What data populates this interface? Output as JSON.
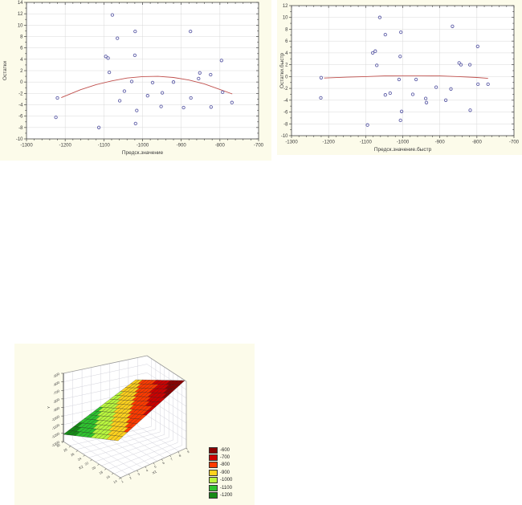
{
  "page": {
    "background": "#ffffff",
    "panel_background": "#fcfbea"
  },
  "chart_data": [
    {
      "id": "residuals-vs-predicted",
      "type": "scatter",
      "xlabel": "Предск.значение",
      "ylabel": "Остатки",
      "xlim": [
        -1300,
        -700
      ],
      "ylim": [
        -10,
        14
      ],
      "x_ticks": [
        -1300,
        -1200,
        -1100,
        -1000,
        -900,
        -800,
        -700
      ],
      "y_ticks": [
        14,
        12,
        10,
        8,
        6,
        4,
        2,
        0,
        -2,
        -4,
        -6,
        -8,
        -10
      ],
      "x_minor_step": 20,
      "y_minor_step": 1,
      "grid": true,
      "marker_color": "#5f5fa8",
      "line_color": "#c0504d",
      "points": [
        [
          -1220,
          -2.8
        ],
        [
          -1224,
          -6.2
        ],
        [
          -1113,
          -8.0
        ],
        [
          -1095,
          4.5
        ],
        [
          -1089,
          4.2
        ],
        [
          -1086,
          1.7
        ],
        [
          -1078,
          11.8
        ],
        [
          -1065,
          7.7
        ],
        [
          -1059,
          -3.3
        ],
        [
          -1047,
          -1.6
        ],
        [
          -1028,
          0.1
        ],
        [
          -1019,
          8.9
        ],
        [
          -1020,
          4.7
        ],
        [
          -1015,
          -5.0
        ],
        [
          -1018,
          -7.3
        ],
        [
          -987,
          -2.4
        ],
        [
          -974,
          -0.1
        ],
        [
          -952,
          -4.3
        ],
        [
          -949,
          -1.9
        ],
        [
          -920,
          0.0
        ],
        [
          -894,
          -4.5
        ],
        [
          -876,
          8.9
        ],
        [
          -875,
          -2.8
        ],
        [
          -852,
          1.6
        ],
        [
          -855,
          0.6
        ],
        [
          -824,
          1.3
        ],
        [
          -823,
          -4.4
        ],
        [
          -796,
          3.8
        ],
        [
          -793,
          -1.8
        ],
        [
          -769,
          -3.6
        ]
      ],
      "fit_curve": [
        [
          -1210,
          -2.75
        ],
        [
          -1160,
          -1.35
        ],
        [
          -1120,
          -0.45
        ],
        [
          -1080,
          0.2
        ],
        [
          -1040,
          0.7
        ],
        [
          -1000,
          0.95
        ],
        [
          -960,
          1.0
        ],
        [
          -920,
          0.8
        ],
        [
          -880,
          0.35
        ],
        [
          -840,
          -0.35
        ],
        [
          -800,
          -1.3
        ],
        [
          -768,
          -2.1
        ]
      ]
    },
    {
      "id": "residuals-vs-predicted-fast",
      "type": "scatter",
      "xlabel": "Предск.значение.быстр",
      "ylabel": "Остатки.быстр",
      "xlim": [
        -1300,
        -700
      ],
      "ylim": [
        -10,
        12
      ],
      "x_ticks": [
        -1300,
        -1200,
        -1100,
        -1000,
        -900,
        -800,
        -700
      ],
      "y_ticks": [
        12,
        10,
        8,
        6,
        4,
        2,
        0,
        -2,
        -4,
        -6,
        -8,
        -10
      ],
      "x_minor_step": 20,
      "y_minor_step": 1,
      "grid": true,
      "marker_color": "#5f5fa8",
      "line_color": "#c0504d",
      "points": [
        [
          -1220,
          -0.2
        ],
        [
          -1221,
          -3.6
        ],
        [
          -1095,
          -8.2
        ],
        [
          -1081,
          4.0
        ],
        [
          -1074,
          4.3
        ],
        [
          -1070,
          1.9
        ],
        [
          -1062,
          10.0
        ],
        [
          -1047,
          7.1
        ],
        [
          -1047,
          -3.1
        ],
        [
          -1034,
          -2.8
        ],
        [
          -1007,
          3.4
        ],
        [
          -1005,
          7.5
        ],
        [
          -1010,
          -0.5
        ],
        [
          -1003,
          -5.9
        ],
        [
          -1006,
          -7.4
        ],
        [
          -973,
          -3.0
        ],
        [
          -964,
          -0.5
        ],
        [
          -938,
          -3.7
        ],
        [
          -936,
          -4.4
        ],
        [
          -910,
          -1.8
        ],
        [
          -884,
          -4.0
        ],
        [
          -866,
          8.5
        ],
        [
          -870,
          -2.1
        ],
        [
          -848,
          2.3
        ],
        [
          -843,
          2.0
        ],
        [
          -819,
          2.0
        ],
        [
          -818,
          -5.7
        ],
        [
          -798,
          5.1
        ],
        [
          -797,
          -1.3
        ],
        [
          -770,
          -1.3
        ]
      ],
      "fit_curve": [
        [
          -1212,
          -0.25
        ],
        [
          -1150,
          -0.1
        ],
        [
          -1100,
          0.0
        ],
        [
          -1050,
          0.1
        ],
        [
          -1000,
          0.15
        ],
        [
          -950,
          0.15
        ],
        [
          -900,
          0.1
        ],
        [
          -850,
          0.0
        ],
        [
          -800,
          -0.15
        ],
        [
          -770,
          -0.3
        ]
      ]
    },
    {
      "id": "regression-surface-3d",
      "type": "surface3d",
      "z_label": "Y",
      "x1_label": "X1",
      "x2_label": "X2",
      "z_ticks": [
        "-500",
        "-600",
        "-700",
        "-800",
        "-900",
        "-1000",
        "-1100",
        "-1200",
        "-1300"
      ],
      "x1_ticks": [
        "1",
        "2",
        "3",
        "4",
        "5",
        "6",
        "7",
        "8",
        "9"
      ],
      "x2_ticks": [
        "30",
        "28",
        "26",
        "24",
        "22",
        "20",
        "18",
        "16",
        "14"
      ],
      "surface_bands_low_to_high": [
        "#168A16",
        "#2FC32F",
        "#B9F73E",
        "#FFD21E",
        "#FF3B00",
        "#CE0000",
        "#8B0000"
      ],
      "legend": [
        {
          "label": "-600",
          "color": "#8B0000"
        },
        {
          "label": "-700",
          "color": "#CE0000"
        },
        {
          "label": "-800",
          "color": "#FF3B00"
        },
        {
          "label": "-900",
          "color": "#FFD21E"
        },
        {
          "label": "-1000",
          "color": "#B9F73E"
        },
        {
          "label": "-1100",
          "color": "#2FC32F"
        },
        {
          "label": "-1200",
          "color": "#168A16"
        }
      ]
    }
  ]
}
